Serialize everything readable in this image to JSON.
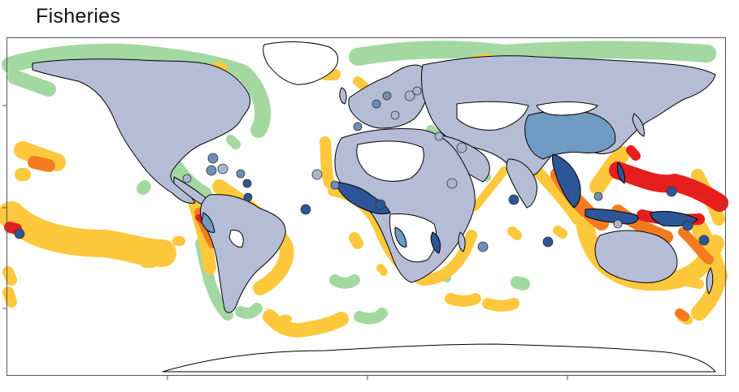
{
  "title": "Fisheries",
  "colors": {
    "ocean_low": "#a3d9a0",
    "ocean_mid": "#fdc83c",
    "ocean_high": "#f47a20",
    "ocean_very_high": "#e61e1e",
    "land_default": "#b5bdd6",
    "land_mid": "#6f9bc2",
    "land_high": "#2d5597",
    "land_no_data": "#ffffff",
    "marker_light": "#a9b6d0",
    "marker_mid": "#6f8fb8",
    "marker_dark": "#2d5597",
    "coastline": "#000000",
    "frame": "#555555"
  },
  "map_layers": [
    "ocean-impact-bands",
    "land-masses",
    "country-markers",
    "map-frame"
  ]
}
